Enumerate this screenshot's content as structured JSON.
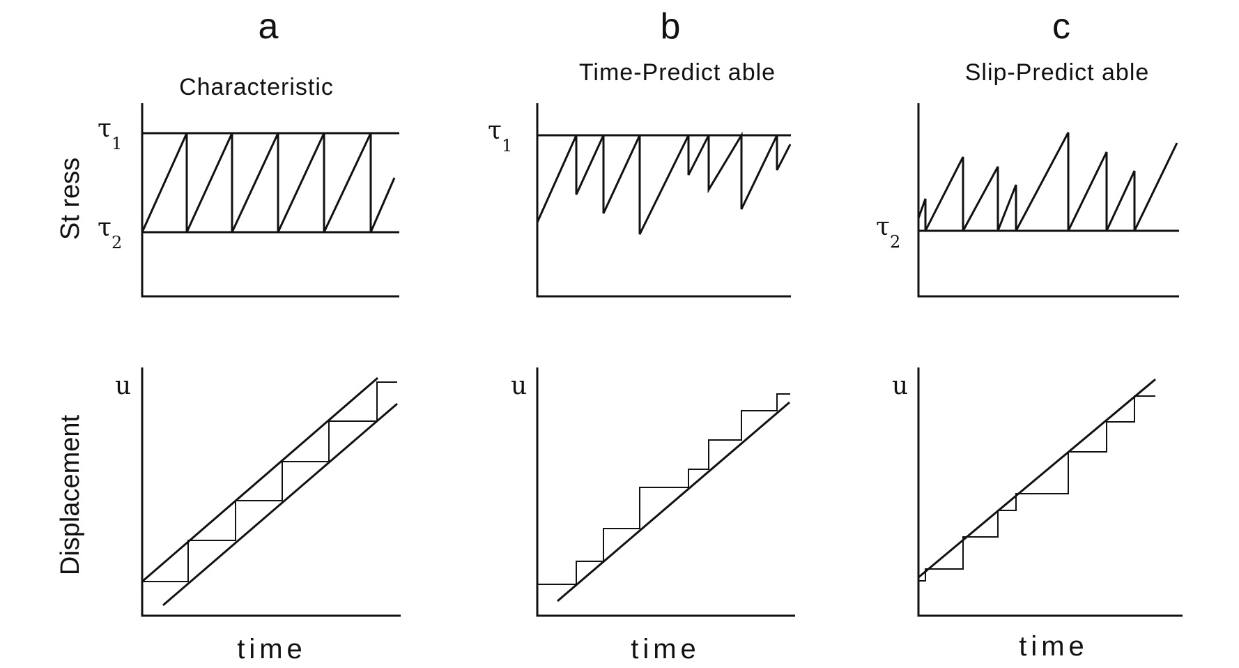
{
  "figure": {
    "panels": [
      {
        "letter": "a",
        "title": "Characteristic"
      },
      {
        "letter": "b",
        "title": "Time-Predict able"
      },
      {
        "letter": "c",
        "title": "Slip-Predict able"
      }
    ],
    "y_labels": {
      "stress": "St ress",
      "displacement": "Displacement"
    },
    "x_label": "time",
    "symbols": {
      "tau": "τ",
      "tau1_sub": "1",
      "tau2_sub": "2",
      "u": "u"
    }
  },
  "models": {
    "a_characteristic": {
      "stress_levels": [
        "tau1",
        "tau2"
      ],
      "sawtooth": "constant load to tau1, constant drop to tau2, equal intervals",
      "displacement_steps": "equal size, equal interval"
    },
    "b_time_predictable": {
      "stress_levels": [
        "tau1"
      ],
      "sawtooth": "failure always at tau1, variable stress drop",
      "displacement_steps": "variable size"
    },
    "c_slip_predictable": {
      "stress_levels": [
        "tau2"
      ],
      "sawtooth": "always drops to tau2, variable failure stress",
      "displacement_steps": "variable size"
    }
  }
}
